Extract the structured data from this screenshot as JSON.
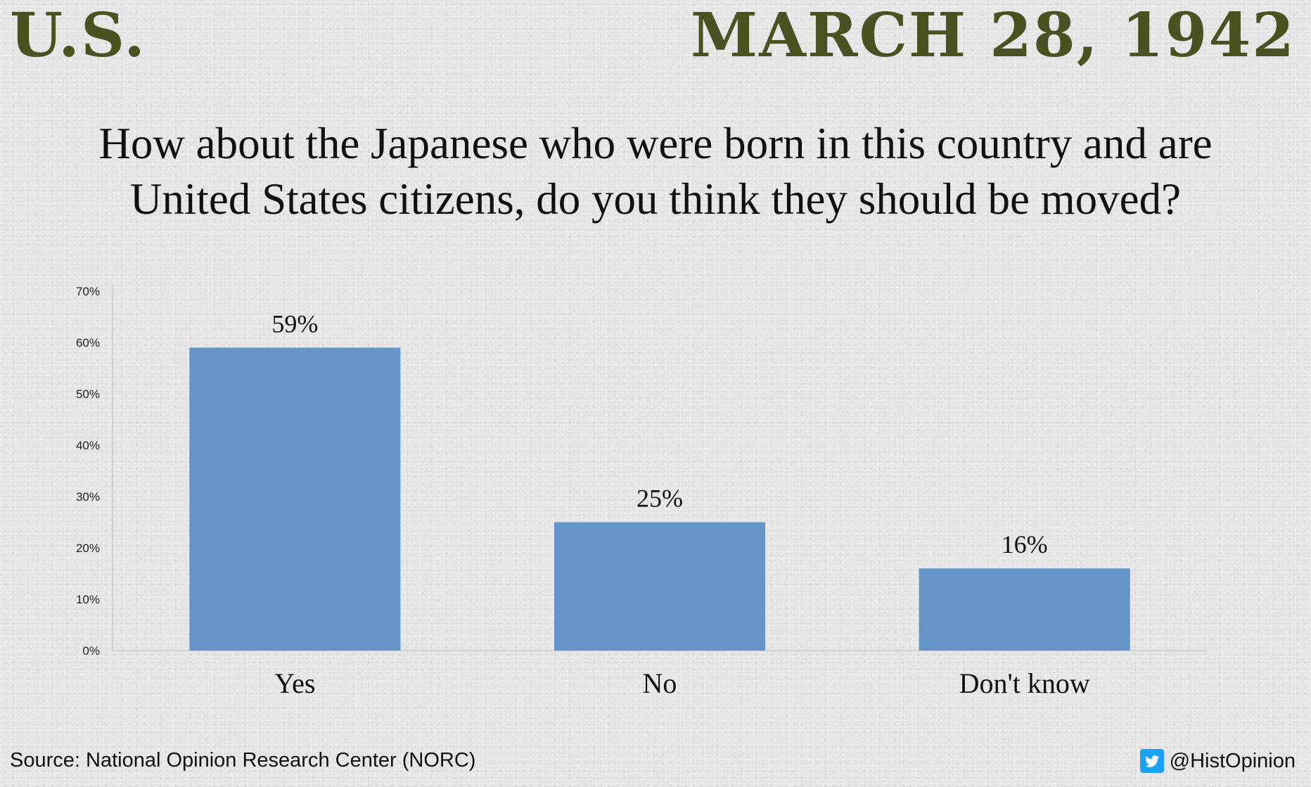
{
  "header": {
    "country": "U.S.",
    "date": "MARCH 28, 1942"
  },
  "question_lines": [
    "How about the Japanese who were born in this country and are",
    "United States citizens, do you think they should be moved?"
  ],
  "footer": {
    "source": "Source: National Opinion Research Center (NORC)",
    "handle": "@HistOpinion",
    "handle_icon": "twitter-bird-icon"
  },
  "colors": {
    "bar": "#6495c8",
    "title": "#4a5222",
    "twitter": "#1da1f2"
  },
  "chart_data": {
    "type": "bar",
    "categories": [
      "Yes",
      "No",
      "Don't know"
    ],
    "values": [
      59,
      25,
      16
    ],
    "data_labels": [
      "59%",
      "25%",
      "16%"
    ],
    "ylim": [
      0,
      70
    ],
    "yticks": [
      "0%",
      "10%",
      "20%",
      "30%",
      "40%",
      "50%",
      "60%",
      "70%"
    ],
    "xlabel": "",
    "ylabel": "",
    "grid": false,
    "legend": "none"
  }
}
